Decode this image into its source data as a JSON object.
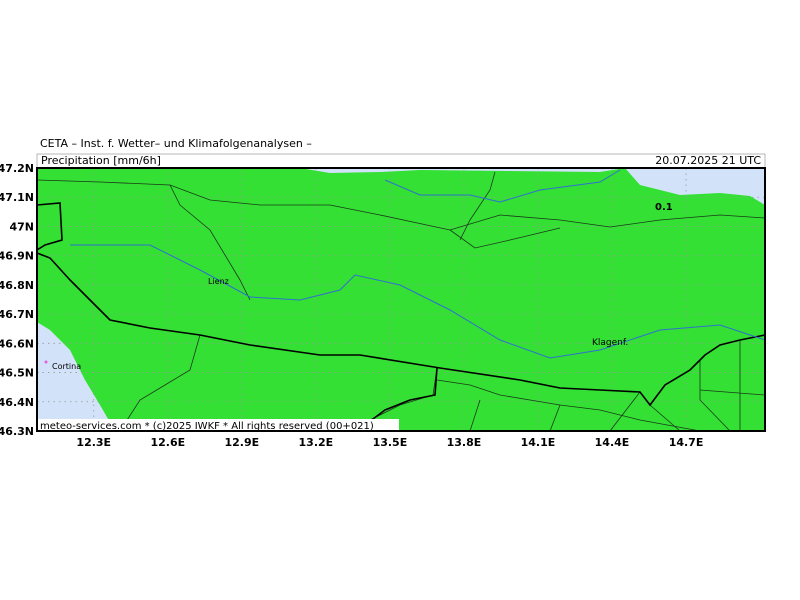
{
  "map": {
    "header": "CETA – Inst. f. Wetter– und Klimafolgenanalysen –",
    "title": "Precipitation [mm/6h]",
    "date": "20.07.2025 21 UTC",
    "footer": "meteo-services.com * (c)2025 IWKF * All rights reserved (00+021)",
    "xlim": [
      12.07,
      15.02
    ],
    "ylim": [
      46.3,
      47.2
    ],
    "xticks": [
      {
        "value": 12.3,
        "label": "12.3E"
      },
      {
        "value": 12.6,
        "label": "12.6E"
      },
      {
        "value": 12.9,
        "label": "12.9E"
      },
      {
        "value": 13.2,
        "label": "13.2E"
      },
      {
        "value": 13.5,
        "label": "13.5E"
      },
      {
        "value": 13.8,
        "label": "13.8E"
      },
      {
        "value": 14.1,
        "label": "14.1E"
      },
      {
        "value": 14.4,
        "label": "14.4E"
      },
      {
        "value": 14.7,
        "label": "14.7E"
      }
    ],
    "yticks": [
      {
        "value": 46.3,
        "label": "46.3N"
      },
      {
        "value": 46.4,
        "label": "46.4N"
      },
      {
        "value": 46.5,
        "label": "46.5N"
      },
      {
        "value": 46.6,
        "label": "46.6N"
      },
      {
        "value": 46.7,
        "label": "46.7N"
      },
      {
        "value": 46.8,
        "label": "46.8N"
      },
      {
        "value": 46.9,
        "label": "46.9N"
      },
      {
        "value": 47,
        "label": "47N"
      },
      {
        "value": 47.1,
        "label": "47.1N"
      },
      {
        "value": 47.2,
        "label": "47.2N"
      }
    ],
    "places": [
      "Lienz",
      "Klagenf.",
      "Cortina"
    ],
    "contour_label": "0.1"
  }
}
